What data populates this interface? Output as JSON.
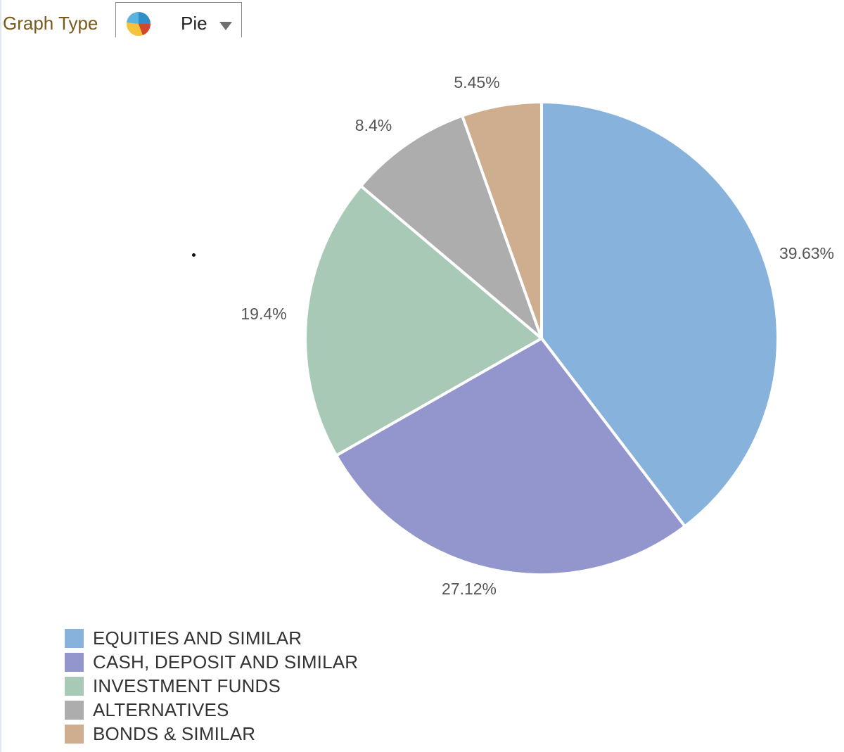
{
  "toolbar": {
    "graph_type_label": "Graph Type",
    "graph_type_value": "Pie",
    "graph_type_icon": "pie-chart-icon"
  },
  "chart_data": {
    "type": "pie",
    "title": "",
    "categories": [
      "EQUITIES AND SIMILAR",
      "CASH, DEPOSIT AND SIMILAR",
      "INVESTMENT FUNDS",
      "ALTERNATIVES",
      "BONDS & SIMILAR"
    ],
    "values": [
      39.63,
      27.12,
      19.4,
      8.4,
      5.45
    ],
    "data_labels": [
      "39.63%",
      "27.12%",
      "19.4%",
      "8.4%",
      "5.45%"
    ],
    "colors": [
      "#86b2dc",
      "#9296cd",
      "#a8c9b6",
      "#adadad",
      "#cfae8f"
    ],
    "start_angle": "12 o'clock",
    "direction": "clockwise",
    "legend_placement": "bottom-left"
  }
}
